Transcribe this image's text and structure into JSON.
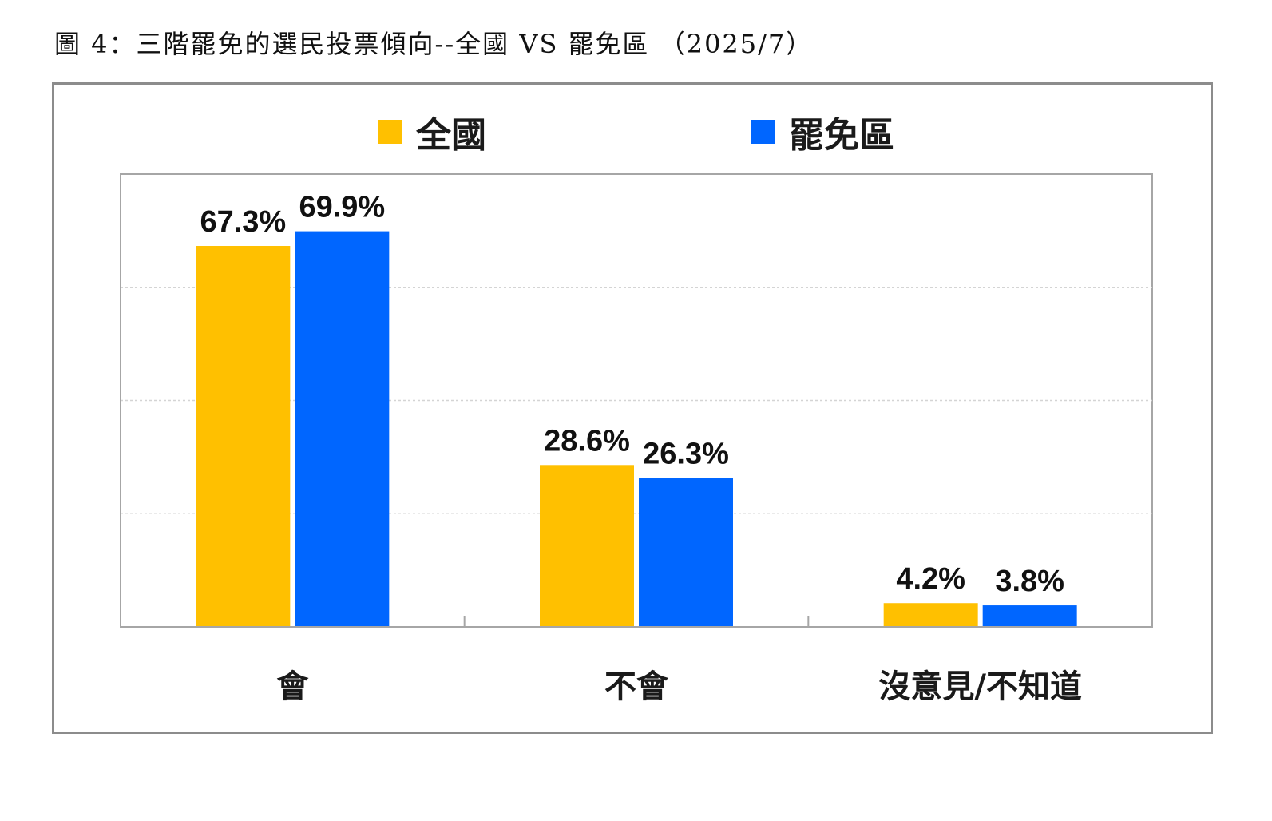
{
  "caption": "圖 4：三階罷免的選民投票傾向--全國 VS 罷免區 （2025/7）",
  "legend": [
    {
      "name": "全國",
      "color": "#FFC000"
    },
    {
      "name": "罷免區",
      "color": "#0066FF"
    }
  ],
  "chart_data": {
    "type": "bar",
    "categories": [
      "會",
      "不會",
      "沒意見/不知道"
    ],
    "series": [
      {
        "name": "全國",
        "color": "#FFC000",
        "values": [
          67.3,
          28.6,
          4.2
        ],
        "labels": [
          "67.3%",
          "28.6%",
          "4.2%"
        ]
      },
      {
        "name": "罷免區",
        "color": "#0066FF",
        "values": [
          69.9,
          26.3,
          3.8
        ],
        "labels": [
          "69.9%",
          "26.3%",
          "3.8%"
        ]
      }
    ],
    "ylim": [
      0,
      80
    ],
    "grid": true,
    "legend_position": "top"
  }
}
